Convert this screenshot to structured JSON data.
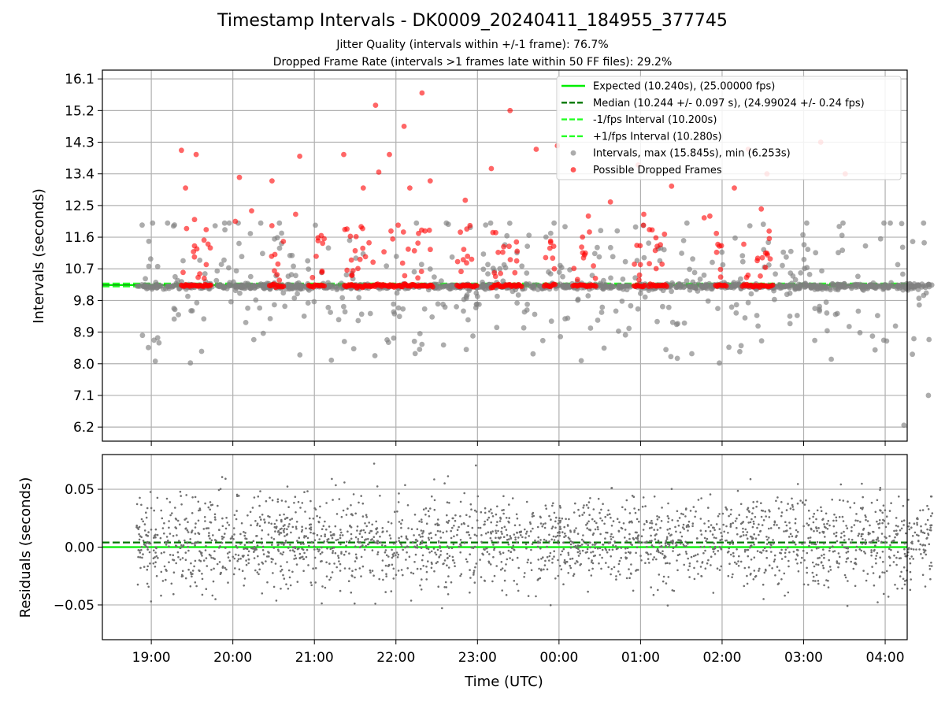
{
  "header": {
    "title": "Timestamp Intervals - DK0009_20240411_184955_377745",
    "subtitle_1": "Jitter Quality (intervals within +/-1 frame): 76.7%",
    "subtitle_2": "Dropped Frame Rate (intervals >1 frames late within 50 FF files): 29.2%"
  },
  "chart_data": [
    {
      "type": "scatter",
      "panel": "top",
      "ylabel": "Intervals (seconds)",
      "y_ticks": [
        "6.2",
        "7.1",
        "8.0",
        "8.9",
        "9.8",
        "10.7",
        "11.6",
        "12.5",
        "13.4",
        "14.3",
        "15.2",
        "16.1"
      ],
      "ylim": [
        5.8,
        16.35
      ],
      "x_ticks": [
        "19:00",
        "20:00",
        "21:00",
        "22:00",
        "23:00",
        "00:00",
        "01:00",
        "02:00",
        "03:00",
        "04:00"
      ],
      "xlim_hours_after_1800": [
        0.4,
        10.27
      ],
      "grid": true,
      "legend_position": "top-right",
      "lines": [
        {
          "name": "Expected (10.240s), (25.00000 fps)",
          "y": 10.24,
          "style": "solid",
          "color": "#00ee00"
        },
        {
          "name": "Median (10.244 +/- 0.097 s), (24.99024 +/- 0.24 fps)",
          "y": 10.244,
          "style": "dashed",
          "color": "#007700"
        },
        {
          "name": "-1/fps Interval (10.200s)",
          "y": 10.2,
          "style": "dashed",
          "color": "#22ff22"
        },
        {
          "name": "+1/fps Interval (10.280s)",
          "y": 10.28,
          "style": "dashed",
          "color": "#22ff22"
        }
      ],
      "series": [
        {
          "name": "Intervals, max (15.845s), min (6.253s)",
          "color": "#808080",
          "max": 15.845,
          "min": 6.253,
          "x_range_hours": [
            0.82,
            10.58
          ]
        },
        {
          "name": "Possible Dropped Frames",
          "color": "#ff0000",
          "examples": [
            {
              "x": 1.37,
              "y": 14.07
            },
            {
              "x": 1.42,
              "y": 13.0
            },
            {
              "x": 1.55,
              "y": 13.95
            },
            {
              "x": 1.53,
              "y": 12.1
            },
            {
              "x": 2.03,
              "y": 12.05
            },
            {
              "x": 2.08,
              "y": 13.3
            },
            {
              "x": 2.23,
              "y": 12.35
            },
            {
              "x": 2.48,
              "y": 13.2
            },
            {
              "x": 2.77,
              "y": 12.25
            },
            {
              "x": 2.82,
              "y": 13.9
            },
            {
              "x": 3.36,
              "y": 13.95
            },
            {
              "x": 3.6,
              "y": 13.0
            },
            {
              "x": 3.75,
              "y": 15.35
            },
            {
              "x": 3.79,
              "y": 13.45
            },
            {
              "x": 3.92,
              "y": 13.95
            },
            {
              "x": 4.1,
              "y": 14.75
            },
            {
              "x": 4.17,
              "y": 13.0
            },
            {
              "x": 4.32,
              "y": 15.7
            },
            {
              "x": 4.42,
              "y": 13.2
            },
            {
              "x": 4.85,
              "y": 12.65
            },
            {
              "x": 5.17,
              "y": 13.55
            },
            {
              "x": 5.4,
              "y": 15.2
            },
            {
              "x": 5.72,
              "y": 14.1
            },
            {
              "x": 5.98,
              "y": 14.2
            },
            {
              "x": 6.36,
              "y": 12.2
            },
            {
              "x": 6.63,
              "y": 12.6
            },
            {
              "x": 6.97,
              "y": 13.65
            },
            {
              "x": 7.04,
              "y": 12.25
            },
            {
              "x": 7.38,
              "y": 13.05
            },
            {
              "x": 7.78,
              "y": 12.15
            },
            {
              "x": 7.85,
              "y": 12.2
            },
            {
              "x": 8.15,
              "y": 13.0
            },
            {
              "x": 8.32,
              "y": 14.1
            },
            {
              "x": 8.48,
              "y": 12.4
            },
            {
              "x": 8.55,
              "y": 13.4
            },
            {
              "x": 9.21,
              "y": 14.3
            },
            {
              "x": 9.51,
              "y": 13.4
            }
          ],
          "clusters_near_10_2_hours": [
            [
              1.37,
              1.73
            ],
            [
              2.45,
              2.62
            ],
            [
              2.93,
              3.12
            ],
            [
              3.37,
              4.45
            ],
            [
              4.75,
              4.99
            ],
            [
              5.17,
              5.54
            ],
            [
              5.82,
              5.95
            ],
            [
              6.17,
              6.45
            ],
            [
              6.92,
              7.05
            ],
            [
              7.1,
              7.32
            ],
            [
              7.92,
              8.05
            ],
            [
              8.25,
              8.62
            ]
          ]
        }
      ]
    },
    {
      "type": "scatter",
      "panel": "bottom",
      "xlabel": "Time (UTC)",
      "ylabel": "Residuals (seconds)",
      "y_ticks": [
        "−0.05",
        "0.00",
        "0.05"
      ],
      "ylim": [
        -0.08,
        0.08
      ],
      "x_ticks": [
        "19:00",
        "20:00",
        "21:00",
        "22:00",
        "23:00",
        "00:00",
        "01:00",
        "02:00",
        "03:00",
        "04:00"
      ],
      "grid": true,
      "lines": [
        {
          "name": "Expected",
          "y": 0.0,
          "style": "solid",
          "color": "#00ee00"
        },
        {
          "name": "Median",
          "y": 0.004,
          "style": "dashed",
          "color": "#007700"
        }
      ],
      "series": [
        {
          "name": "Residuals",
          "color": "#808080",
          "approx_spread": 0.02,
          "range": [
            -0.075,
            0.078
          ],
          "x_range_hours": [
            0.82,
            10.58
          ]
        }
      ]
    }
  ]
}
